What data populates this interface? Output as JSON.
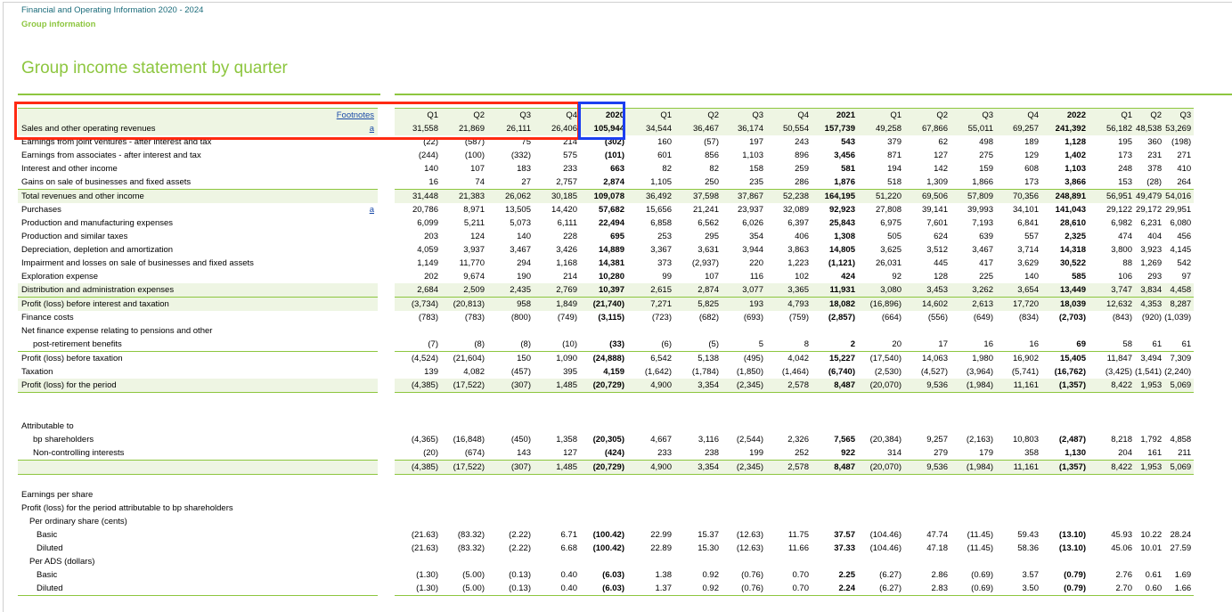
{
  "header": {
    "doc_title": "Financial and Operating Information 2020 - 2024",
    "section": "Group information",
    "page_title": "Group income statement by quarter"
  },
  "table": {
    "footnotes_label": "Footnotes",
    "columns": [
      "Q1",
      "Q2",
      "Q3",
      "Q4",
      "2020",
      "Q1",
      "Q2",
      "Q3",
      "Q4",
      "2021",
      "Q1",
      "Q2",
      "Q3",
      "Q4",
      "2022",
      "Q1",
      "Q2",
      "Q3"
    ],
    "rows": [
      {
        "label": "Sales and other operating revenues",
        "fn": "a",
        "values": [
          "31,558",
          "21,869",
          "26,111",
          "26,406",
          "105,944",
          "34,544",
          "36,467",
          "36,174",
          "50,554",
          "157,739",
          "49,258",
          "67,866",
          "55,011",
          "69,257",
          "241,392",
          "56,182",
          "48,538",
          "53,269"
        ]
      },
      {
        "label": "Earnings from joint ventures - after interest and tax",
        "fn": "",
        "values": [
          "(22)",
          "(587)",
          "75",
          "214",
          "(302)",
          "160",
          "(57)",
          "197",
          "243",
          "543",
          "379",
          "62",
          "498",
          "189",
          "1,128",
          "195",
          "360",
          "(198)"
        ]
      },
      {
        "label": "Earnings from associates - after interest and tax",
        "fn": "",
        "values": [
          "(244)",
          "(100)",
          "(332)",
          "575",
          "(101)",
          "601",
          "856",
          "1,103",
          "896",
          "3,456",
          "871",
          "127",
          "275",
          "129",
          "1,402",
          "173",
          "231",
          "271"
        ]
      },
      {
        "label": "Interest and other income",
        "fn": "",
        "values": [
          "140",
          "107",
          "183",
          "233",
          "663",
          "82",
          "82",
          "158",
          "259",
          "581",
          "194",
          "142",
          "159",
          "608",
          "1,103",
          "248",
          "378",
          "410"
        ]
      },
      {
        "label": "Gains on sale of businesses and fixed assets",
        "fn": "",
        "values": [
          "16",
          "74",
          "27",
          "2,757",
          "2,874",
          "1,105",
          "250",
          "235",
          "286",
          "1,876",
          "518",
          "1,309",
          "1,866",
          "173",
          "3,866",
          "153",
          "(28)",
          "264"
        ]
      },
      {
        "label": "Total revenues and other income",
        "fn": "",
        "values": [
          "31,448",
          "21,383",
          "26,062",
          "30,185",
          "109,078",
          "36,492",
          "37,598",
          "37,867",
          "52,238",
          "164,195",
          "51,220",
          "69,506",
          "57,809",
          "70,356",
          "248,891",
          "56,951",
          "49,479",
          "54,016"
        ]
      },
      {
        "label": "Purchases",
        "fn": "a",
        "values": [
          "20,786",
          "8,971",
          "13,505",
          "14,420",
          "57,682",
          "15,656",
          "21,241",
          "23,937",
          "32,089",
          "92,923",
          "27,808",
          "39,141",
          "39,993",
          "34,101",
          "141,043",
          "29,122",
          "29,172",
          "29,951"
        ]
      },
      {
        "label": "Production and manufacturing expenses",
        "fn": "",
        "values": [
          "6,099",
          "5,211",
          "5,073",
          "6,111",
          "22,494",
          "6,858",
          "6,562",
          "6,026",
          "6,397",
          "25,843",
          "6,975",
          "7,601",
          "7,193",
          "6,841",
          "28,610",
          "6,982",
          "6,231",
          "6,080"
        ]
      },
      {
        "label": "Production and similar taxes",
        "fn": "",
        "values": [
          "203",
          "124",
          "140",
          "228",
          "695",
          "253",
          "295",
          "354",
          "406",
          "1,308",
          "505",
          "624",
          "639",
          "557",
          "2,325",
          "474",
          "404",
          "456"
        ]
      },
      {
        "label": "Depreciation, depletion and amortization",
        "fn": "",
        "values": [
          "4,059",
          "3,937",
          "3,467",
          "3,426",
          "14,889",
          "3,367",
          "3,631",
          "3,944",
          "3,863",
          "14,805",
          "3,625",
          "3,512",
          "3,467",
          "3,714",
          "14,318",
          "3,800",
          "3,923",
          "4,145"
        ]
      },
      {
        "label": "Impairment and losses on sale of businesses and fixed assets",
        "fn": "",
        "values": [
          "1,149",
          "11,770",
          "294",
          "1,168",
          "14,381",
          "373",
          "(2,937)",
          "220",
          "1,223",
          "(1,121)",
          "26,031",
          "445",
          "417",
          "3,629",
          "30,522",
          "88",
          "1,269",
          "542"
        ]
      },
      {
        "label": "Exploration expense",
        "fn": "",
        "values": [
          "202",
          "9,674",
          "190",
          "214",
          "10,280",
          "99",
          "107",
          "116",
          "102",
          "424",
          "92",
          "128",
          "225",
          "140",
          "585",
          "106",
          "293",
          "97"
        ]
      },
      {
        "label": "Distribution and administration expenses",
        "fn": "",
        "values": [
          "2,684",
          "2,509",
          "2,435",
          "2,769",
          "10,397",
          "2,615",
          "2,874",
          "3,077",
          "3,365",
          "11,931",
          "3,080",
          "3,453",
          "3,262",
          "3,654",
          "13,449",
          "3,747",
          "3,834",
          "4,458"
        ]
      },
      {
        "label": "Profit (loss) before interest and taxation",
        "fn": "",
        "values": [
          "(3,734)",
          "(20,813)",
          "958",
          "1,849",
          "(21,740)",
          "7,271",
          "5,825",
          "193",
          "4,793",
          "18,082",
          "(16,896)",
          "14,602",
          "2,613",
          "17,720",
          "18,039",
          "12,632",
          "4,353",
          "8,287"
        ]
      },
      {
        "label": "Finance costs",
        "fn": "",
        "values": [
          "(783)",
          "(783)",
          "(800)",
          "(749)",
          "(3,115)",
          "(723)",
          "(682)",
          "(693)",
          "(759)",
          "(2,857)",
          "(664)",
          "(556)",
          "(649)",
          "(834)",
          "(2,703)",
          "(843)",
          "(920)",
          "(1,039)"
        ]
      },
      {
        "label": "Net finance expense relating to pensions and other",
        "fn": "",
        "values": [
          "",
          "",
          "",
          "",
          "",
          "",
          "",
          "",
          "",
          "",
          "",
          "",
          "",
          "",
          "",
          "",
          "",
          ""
        ]
      },
      {
        "label": "post-retirement benefits",
        "fn": "",
        "values": [
          "(7)",
          "(8)",
          "(8)",
          "(10)",
          "(33)",
          "(6)",
          "(5)",
          "5",
          "8",
          "2",
          "20",
          "17",
          "16",
          "16",
          "69",
          "58",
          "61",
          "61"
        ]
      },
      {
        "label": "Profit (loss) before taxation",
        "fn": "",
        "values": [
          "(4,524)",
          "(21,604)",
          "150",
          "1,090",
          "(24,888)",
          "6,542",
          "5,138",
          "(495)",
          "4,042",
          "15,227",
          "(17,540)",
          "14,063",
          "1,980",
          "16,902",
          "15,405",
          "11,847",
          "3,494",
          "7,309"
        ]
      },
      {
        "label": "Taxation",
        "fn": "",
        "values": [
          "139",
          "4,082",
          "(457)",
          "395",
          "4,159",
          "(1,642)",
          "(1,784)",
          "(1,850)",
          "(1,464)",
          "(6,740)",
          "(2,530)",
          "(4,527)",
          "(3,964)",
          "(5,741)",
          "(16,762)",
          "(3,425)",
          "(1,541)",
          "(2,240)"
        ]
      },
      {
        "label": "Profit (loss) for the period",
        "fn": "",
        "values": [
          "(4,385)",
          "(17,522)",
          "(307)",
          "1,485",
          "(20,729)",
          "4,900",
          "3,354",
          "(2,345)",
          "2,578",
          "8,487",
          "(20,070)",
          "9,536",
          "(1,984)",
          "11,161",
          "(1,357)",
          "8,422",
          "1,953",
          "5,069"
        ]
      },
      {
        "label": "",
        "fn": "",
        "values": [
          "",
          "",
          "",
          "",
          "",
          "",
          "",
          "",
          "",
          "",
          "",
          "",
          "",
          "",
          "",
          "",
          "",
          ""
        ]
      },
      {
        "label": "",
        "fn": "",
        "values": [
          "",
          "",
          "",
          "",
          "",
          "",
          "",
          "",
          "",
          "",
          "",
          "",
          "",
          "",
          "",
          "",
          "",
          ""
        ]
      },
      {
        "label": "Attributable to",
        "fn": "",
        "values": [
          "",
          "",
          "",
          "",
          "",
          "",
          "",
          "",
          "",
          "",
          "",
          "",
          "",
          "",
          "",
          "",
          "",
          ""
        ]
      },
      {
        "label": "bp shareholders",
        "fn": "",
        "values": [
          "(4,365)",
          "(16,848)",
          "(450)",
          "1,358",
          "(20,305)",
          "4,667",
          "3,116",
          "(2,544)",
          "2,326",
          "7,565",
          "(20,384)",
          "9,257",
          "(2,163)",
          "10,803",
          "(2,487)",
          "8,218",
          "1,792",
          "4,858"
        ]
      },
      {
        "label": "Non-controlling interests",
        "fn": "",
        "values": [
          "(20)",
          "(674)",
          "143",
          "127",
          "(424)",
          "233",
          "238",
          "199",
          "252",
          "922",
          "314",
          "279",
          "179",
          "358",
          "1,130",
          "204",
          "161",
          "211"
        ]
      },
      {
        "label": "",
        "fn": "",
        "values": [
          "(4,385)",
          "(17,522)",
          "(307)",
          "1,485",
          "(20,729)",
          "4,900",
          "3,354",
          "(2,345)",
          "2,578",
          "8,487",
          "(20,070)",
          "9,536",
          "(1,984)",
          "11,161",
          "(1,357)",
          "8,422",
          "1,953",
          "5,069"
        ]
      },
      {
        "label": "",
        "fn": "",
        "values": [
          "",
          "",
          "",
          "",
          "",
          "",
          "",
          "",
          "",
          "",
          "",
          "",
          "",
          "",
          "",
          "",
          "",
          ""
        ]
      },
      {
        "label": "Earnings per share",
        "fn": "",
        "values": [
          "",
          "",
          "",
          "",
          "",
          "",
          "",
          "",
          "",
          "",
          "",
          "",
          "",
          "",
          "",
          "",
          "",
          ""
        ]
      },
      {
        "label": "Profit (loss) for the period attributable to bp shareholders",
        "fn": "",
        "values": [
          "",
          "",
          "",
          "",
          "",
          "",
          "",
          "",
          "",
          "",
          "",
          "",
          "",
          "",
          "",
          "",
          "",
          ""
        ]
      },
      {
        "label": "Per ordinary share (cents)",
        "fn": "",
        "values": [
          "",
          "",
          "",
          "",
          "",
          "",
          "",
          "",
          "",
          "",
          "",
          "",
          "",
          "",
          "",
          "",
          "",
          ""
        ]
      },
      {
        "label": "Basic",
        "fn": "",
        "values": [
          "(21.63)",
          "(83.32)",
          "(2.22)",
          "6.71",
          "(100.42)",
          "22.99",
          "15.37",
          "(12.63)",
          "11.75",
          "37.57",
          "(104.46)",
          "47.74",
          "(11.45)",
          "59.43",
          "(13.10)",
          "45.93",
          "10.22",
          "28.24"
        ]
      },
      {
        "label": "Diluted",
        "fn": "",
        "values": [
          "(21.63)",
          "(83.32)",
          "(2.22)",
          "6.68",
          "(100.42)",
          "22.89",
          "15.30",
          "(12.63)",
          "11.66",
          "37.33",
          "(104.46)",
          "47.18",
          "(11.45)",
          "58.36",
          "(13.10)",
          "45.06",
          "10.01",
          "27.59"
        ]
      },
      {
        "label": "Per ADS (dollars)",
        "fn": "",
        "values": [
          "",
          "",
          "",
          "",
          "",
          "",
          "",
          "",
          "",
          "",
          "",
          "",
          "",
          "",
          "",
          "",
          "",
          ""
        ]
      },
      {
        "label": "Basic",
        "fn": "",
        "values": [
          "(1.30)",
          "(5.00)",
          "(0.13)",
          "0.40",
          "(6.03)",
          "1.38",
          "0.92",
          "(0.76)",
          "0.70",
          "2.25",
          "(6.27)",
          "2.86",
          "(0.69)",
          "3.57",
          "(0.79)",
          "2.76",
          "0.61",
          "1.69"
        ]
      },
      {
        "label": "Diluted",
        "fn": "",
        "values": [
          "(1.30)",
          "(5.00)",
          "(0.13)",
          "0.40",
          "(6.03)",
          "1.37",
          "0.92",
          "(0.76)",
          "0.70",
          "2.24",
          "(6.27)",
          "2.83",
          "(0.69)",
          "3.50",
          "(0.79)",
          "2.70",
          "0.60",
          "1.66"
        ]
      }
    ]
  }
}
